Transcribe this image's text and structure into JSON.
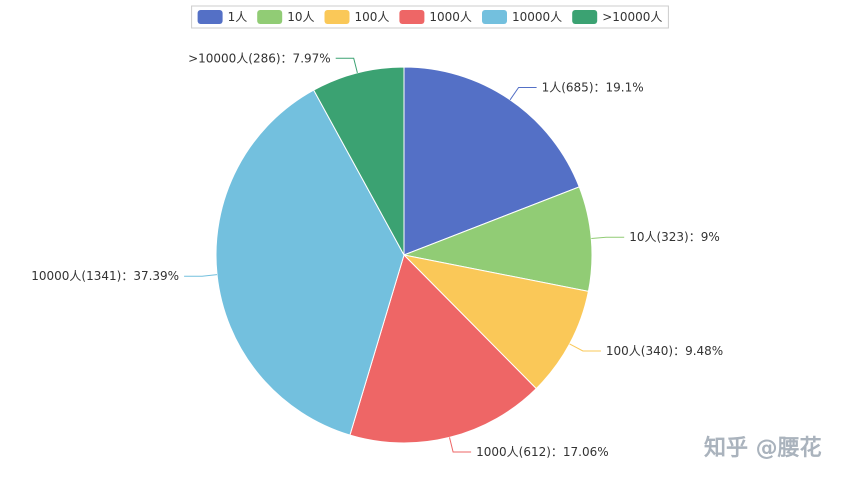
{
  "chart_data": {
    "type": "pie",
    "series": [
      {
        "name": "1人",
        "value": 685,
        "label": "1人(685)：19.1%",
        "color": "#5470c6"
      },
      {
        "name": "10人",
        "value": 323,
        "label": "10人(323)：9%",
        "color": "#91cc75"
      },
      {
        "name": "100人",
        "value": 340,
        "label": "100人(340)：9.48%",
        "color": "#fac858"
      },
      {
        "name": "1000人",
        "value": 612,
        "label": "1000人(612)：17.06%",
        "color": "#ee6666"
      },
      {
        "name": "10000人",
        "value": 1341,
        "label": "10000人(1341)：37.39%",
        "color": "#73c0de"
      },
      {
        "name": ">10000人",
        "value": 286,
        "label": ">10000人(286)：7.97%",
        "color": "#3ba272"
      }
    ],
    "legend_position": "top-center",
    "start_angle": "12 o'clock",
    "direction": "clockwise"
  },
  "watermark": "知乎 @腰花"
}
